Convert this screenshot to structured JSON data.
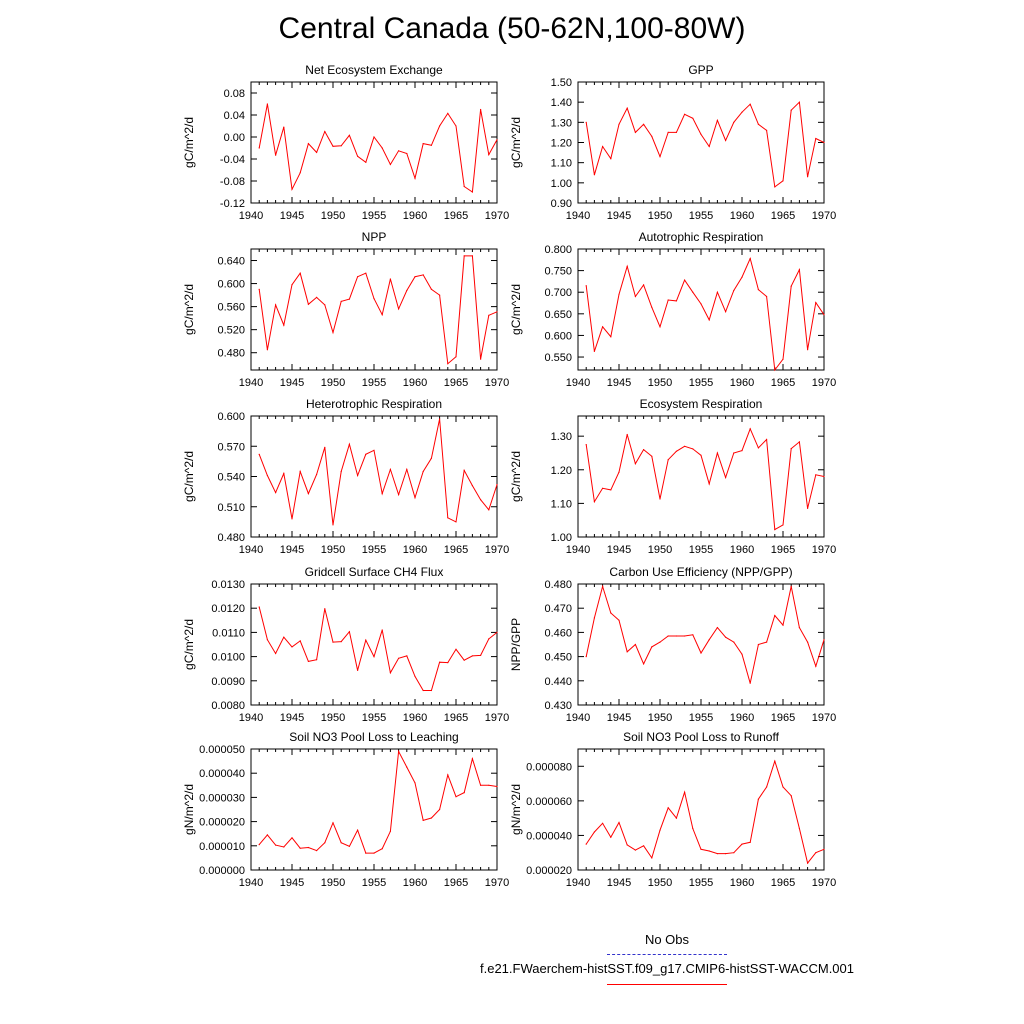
{
  "title": "Central Canada (50-62N,100-80W)",
  "legend": {
    "obs_label": "No Obs",
    "obs_color": "#3333cc",
    "model_label": "f.e21.FWaerchem-histSST.f09_g17.CMIP6-histSST-WACCM.001",
    "model_color": "#ff0000"
  },
  "chart_data": [
    {
      "type": "line",
      "title": "Net Ecosystem Exchange",
      "ylabel": "gC/m^2/d",
      "xlim": [
        1940,
        1970
      ],
      "ylim": [
        -0.12,
        0.1
      ],
      "yticks": [
        "0.08",
        "0.04",
        "0.00",
        "-0.04",
        "-0.08",
        "-0.12"
      ],
      "ytick_values": [
        0.08,
        0.04,
        0.0,
        -0.04,
        -0.08,
        -0.12
      ],
      "xticks": [
        "1940",
        "1945",
        "1950",
        "1955",
        "1960",
        "1965",
        "1970"
      ],
      "x": [
        1941,
        1942,
        1943,
        1944,
        1945,
        1946,
        1947,
        1948,
        1949,
        1950,
        1951,
        1952,
        1953,
        1954,
        1955,
        1956,
        1957,
        1958,
        1959,
        1960,
        1961,
        1962,
        1963,
        1964,
        1965,
        1966,
        1967,
        1968,
        1969,
        1970
      ],
      "series": [
        {
          "values": [
            -0.02,
            0.06,
            -0.033,
            0.018,
            -0.095,
            -0.065,
            -0.012,
            -0.028,
            0.01,
            -0.017,
            -0.016,
            0.003,
            -0.035,
            -0.046,
            0.0,
            -0.02,
            -0.05,
            -0.025,
            -0.03,
            -0.075,
            -0.012,
            -0.015,
            0.02,
            0.043,
            0.02,
            -0.09,
            -0.1,
            0.05,
            -0.032,
            -0.005
          ],
          "color": "#ff0000"
        }
      ]
    },
    {
      "type": "line",
      "title": "GPP",
      "ylabel": "gC/m^2/d",
      "xlim": [
        1940,
        1970
      ],
      "ylim": [
        0.9,
        1.5
      ],
      "yticks": [
        "1.50",
        "1.40",
        "1.30",
        "1.20",
        "1.10",
        "1.00",
        "0.90"
      ],
      "ytick_values": [
        1.5,
        1.4,
        1.3,
        1.2,
        1.1,
        1.0,
        0.9
      ],
      "xticks": [
        "1940",
        "1945",
        "1950",
        "1955",
        "1960",
        "1965",
        "1970"
      ],
      "x": [
        1941,
        1942,
        1943,
        1944,
        1945,
        1946,
        1947,
        1948,
        1949,
        1950,
        1951,
        1952,
        1953,
        1954,
        1955,
        1956,
        1957,
        1958,
        1959,
        1960,
        1961,
        1962,
        1963,
        1964,
        1965,
        1966,
        1967,
        1968,
        1969,
        1970
      ],
      "series": [
        {
          "values": [
            1.3,
            1.04,
            1.18,
            1.12,
            1.29,
            1.37,
            1.25,
            1.29,
            1.23,
            1.13,
            1.25,
            1.25,
            1.34,
            1.32,
            1.24,
            1.18,
            1.31,
            1.21,
            1.3,
            1.35,
            1.39,
            1.29,
            1.26,
            0.98,
            1.01,
            1.36,
            1.4,
            1.03,
            1.22,
            1.2
          ],
          "color": "#ff0000"
        }
      ]
    },
    {
      "type": "line",
      "title": "NPP",
      "ylabel": "gC/m^2/d",
      "xlim": [
        1940,
        1970
      ],
      "ylim": [
        0.45,
        0.66
      ],
      "yticks": [
        "0.640",
        "0.600",
        "0.560",
        "0.520",
        "0.480"
      ],
      "ytick_values": [
        0.64,
        0.6,
        0.56,
        0.52,
        0.48
      ],
      "xticks": [
        "1940",
        "1945",
        "1950",
        "1955",
        "1960",
        "1965",
        "1970"
      ],
      "x": [
        1941,
        1942,
        1943,
        1944,
        1945,
        1946,
        1947,
        1948,
        1949,
        1950,
        1951,
        1952,
        1953,
        1954,
        1955,
        1956,
        1957,
        1958,
        1959,
        1960,
        1961,
        1962,
        1963,
        1964,
        1965,
        1966,
        1967,
        1968,
        1969,
        1970
      ],
      "series": [
        {
          "values": [
            0.59,
            0.485,
            0.563,
            0.528,
            0.598,
            0.618,
            0.564,
            0.576,
            0.563,
            0.515,
            0.569,
            0.573,
            0.612,
            0.618,
            0.574,
            0.546,
            0.608,
            0.556,
            0.588,
            0.612,
            0.615,
            0.59,
            0.58,
            0.461,
            0.473,
            0.648,
            0.648,
            0.469,
            0.545,
            0.551
          ],
          "color": "#ff0000"
        }
      ]
    },
    {
      "type": "line",
      "title": "Autotrophic Respiration",
      "ylabel": "gC/m^2/d",
      "xlim": [
        1940,
        1970
      ],
      "ylim": [
        0.52,
        0.8
      ],
      "yticks": [
        "0.800",
        "0.750",
        "0.700",
        "0.650",
        "0.600",
        "0.550"
      ],
      "ytick_values": [
        0.8,
        0.75,
        0.7,
        0.65,
        0.6,
        0.55
      ],
      "xticks": [
        "1940",
        "1945",
        "1950",
        "1955",
        "1960",
        "1965",
        "1970"
      ],
      "x": [
        1941,
        1942,
        1943,
        1944,
        1945,
        1946,
        1947,
        1948,
        1949,
        1950,
        1951,
        1952,
        1953,
        1954,
        1955,
        1956,
        1957,
        1958,
        1959,
        1960,
        1961,
        1962,
        1963,
        1964,
        1965,
        1966,
        1967,
        1968,
        1969,
        1970
      ],
      "series": [
        {
          "values": [
            0.715,
            0.563,
            0.62,
            0.597,
            0.695,
            0.76,
            0.69,
            0.717,
            0.665,
            0.62,
            0.682,
            0.68,
            0.728,
            0.7,
            0.673,
            0.636,
            0.7,
            0.655,
            0.704,
            0.735,
            0.778,
            0.706,
            0.69,
            0.52,
            0.545,
            0.714,
            0.752,
            0.567,
            0.676,
            0.648
          ],
          "color": "#ff0000"
        }
      ]
    },
    {
      "type": "line",
      "title": "Heterotrophic Respiration",
      "ylabel": "gC/m^2/d",
      "xlim": [
        1940,
        1970
      ],
      "ylim": [
        0.48,
        0.6
      ],
      "yticks": [
        "0.600",
        "0.570",
        "0.540",
        "0.510",
        "0.480"
      ],
      "ytick_values": [
        0.6,
        0.57,
        0.54,
        0.51,
        0.48
      ],
      "xticks": [
        "1940",
        "1945",
        "1950",
        "1955",
        "1960",
        "1965",
        "1970"
      ],
      "x": [
        1941,
        1942,
        1943,
        1944,
        1945,
        1946,
        1947,
        1948,
        1949,
        1950,
        1951,
        1952,
        1953,
        1954,
        1955,
        1956,
        1957,
        1958,
        1959,
        1960,
        1961,
        1962,
        1963,
        1964,
        1965,
        1966,
        1967,
        1968,
        1969,
        1970
      ],
      "series": [
        {
          "values": [
            0.562,
            0.541,
            0.524,
            0.543,
            0.498,
            0.545,
            0.523,
            0.542,
            0.569,
            0.492,
            0.545,
            0.572,
            0.541,
            0.562,
            0.566,
            0.523,
            0.547,
            0.522,
            0.547,
            0.519,
            0.545,
            0.558,
            0.597,
            0.499,
            0.495,
            0.546,
            0.531,
            0.517,
            0.507,
            0.532
          ],
          "color": "#ff0000"
        }
      ]
    },
    {
      "type": "line",
      "title": "Ecosystem Respiration",
      "ylabel": "gC/m^2/d",
      "xlim": [
        1940,
        1970
      ],
      "ylim": [
        1.0,
        1.36
      ],
      "yticks": [
        "1.30",
        "1.20",
        "1.10",
        "1.00"
      ],
      "ytick_values": [
        1.3,
        1.2,
        1.1,
        1.0
      ],
      "xticks": [
        "1940",
        "1945",
        "1950",
        "1955",
        "1960",
        "1965",
        "1970"
      ],
      "x": [
        1941,
        1942,
        1943,
        1944,
        1945,
        1946,
        1947,
        1948,
        1949,
        1950,
        1951,
        1952,
        1953,
        1954,
        1955,
        1956,
        1957,
        1958,
        1959,
        1960,
        1961,
        1962,
        1963,
        1964,
        1965,
        1966,
        1967,
        1968,
        1969,
        1970
      ],
      "series": [
        {
          "values": [
            1.275,
            1.105,
            1.145,
            1.14,
            1.193,
            1.305,
            1.218,
            1.26,
            1.24,
            1.113,
            1.23,
            1.255,
            1.27,
            1.262,
            1.243,
            1.158,
            1.25,
            1.177,
            1.25,
            1.257,
            1.322,
            1.265,
            1.29,
            1.022,
            1.036,
            1.263,
            1.283,
            1.085,
            1.185,
            1.18
          ],
          "color": "#ff0000"
        }
      ]
    },
    {
      "type": "line",
      "title": "Gridcell Surface CH4 Flux",
      "ylabel": "gC/m^2/d",
      "xlim": [
        1940,
        1970
      ],
      "ylim": [
        0.008,
        0.013
      ],
      "yticks": [
        "0.0130",
        "0.0120",
        "0.0110",
        "0.0100",
        "0.0090",
        "0.0080"
      ],
      "ytick_values": [
        0.013,
        0.012,
        0.011,
        0.01,
        0.009,
        0.008
      ],
      "xticks": [
        "1940",
        "1945",
        "1950",
        "1955",
        "1960",
        "1965",
        "1970"
      ],
      "x": [
        1941,
        1942,
        1943,
        1944,
        1945,
        1946,
        1947,
        1948,
        1949,
        1950,
        1951,
        1952,
        1953,
        1954,
        1955,
        1956,
        1957,
        1958,
        1959,
        1960,
        1961,
        1962,
        1963,
        1964,
        1965,
        1966,
        1967,
        1968,
        1969,
        1970
      ],
      "series": [
        {
          "values": [
            0.01205,
            0.0107,
            0.01013,
            0.0108,
            0.0104,
            0.01065,
            0.0098,
            0.00987,
            0.01198,
            0.0106,
            0.01062,
            0.01103,
            0.00943,
            0.01068,
            0.01,
            0.0111,
            0.00933,
            0.00993,
            0.01003,
            0.00918,
            0.0086,
            0.0086,
            0.00977,
            0.00975,
            0.0103,
            0.00985,
            0.01003,
            0.01005,
            0.01073,
            0.011
          ],
          "color": "#ff0000"
        }
      ]
    },
    {
      "type": "line",
      "title": "Carbon Use Efficiency (NPP/GPP)",
      "ylabel": "NPP/GPP",
      "xlim": [
        1940,
        1970
      ],
      "ylim": [
        0.43,
        0.48
      ],
      "yticks": [
        "0.480",
        "0.470",
        "0.460",
        "0.450",
        "0.440",
        "0.430"
      ],
      "ytick_values": [
        0.48,
        0.47,
        0.46,
        0.45,
        0.44,
        0.43
      ],
      "xticks": [
        "1940",
        "1945",
        "1950",
        "1955",
        "1960",
        "1965",
        "1970"
      ],
      "x": [
        1941,
        1942,
        1943,
        1944,
        1945,
        1946,
        1947,
        1948,
        1949,
        1950,
        1951,
        1952,
        1953,
        1954,
        1955,
        1956,
        1957,
        1958,
        1959,
        1960,
        1961,
        1962,
        1963,
        1964,
        1965,
        1966,
        1967,
        1968,
        1969,
        1970
      ],
      "series": [
        {
          "values": [
            0.45,
            0.466,
            0.479,
            0.468,
            0.465,
            0.452,
            0.455,
            0.447,
            0.454,
            0.456,
            0.4585,
            0.4585,
            0.4585,
            0.459,
            0.4515,
            0.457,
            0.462,
            0.458,
            0.456,
            0.451,
            0.439,
            0.455,
            0.456,
            0.467,
            0.463,
            0.479,
            0.462,
            0.456,
            0.446,
            0.457
          ],
          "color": "#ff0000"
        }
      ]
    },
    {
      "type": "line",
      "title": "Soil NO3 Pool Loss to Leaching",
      "ylabel": "gN/m^2/d",
      "xlim": [
        1940,
        1970
      ],
      "ylim": [
        0.0,
        5e-05
      ],
      "yticks": [
        "0.000050",
        "0.000040",
        "0.000030",
        "0.000020",
        "0.000010",
        "0.000000"
      ],
      "ytick_values": [
        5e-05,
        4e-05,
        3e-05,
        2e-05,
        1e-05,
        0.0
      ],
      "xticks": [
        "1940",
        "1945",
        "1950",
        "1955",
        "1960",
        "1965",
        "1970"
      ],
      "x": [
        1941,
        1942,
        1943,
        1944,
        1945,
        1946,
        1947,
        1948,
        1949,
        1950,
        1951,
        1952,
        1953,
        1954,
        1955,
        1956,
        1957,
        1958,
        1959,
        1960,
        1961,
        1962,
        1963,
        1964,
        1965,
        1966,
        1967,
        1968,
        1969,
        1970
      ],
      "series": [
        {
          "values": [
            1.05e-05,
            1.45e-05,
            1.03e-05,
            9.5e-06,
            1.33e-05,
            9e-06,
            9.3e-06,
            8e-06,
            1.13e-05,
            1.95e-05,
            1.13e-05,
            9.8e-06,
            1.65e-05,
            7e-06,
            7e-06,
            8.8e-06,
            1.6e-05,
            4.9e-05,
            4.25e-05,
            3.6e-05,
            2.05e-05,
            2.15e-05,
            2.5e-05,
            3.93e-05,
            3.03e-05,
            3.2e-05,
            4.6e-05,
            3.5e-05,
            3.5e-05,
            3.45e-05
          ],
          "color": "#ff0000"
        }
      ]
    },
    {
      "type": "line",
      "title": "Soil NO3 Pool Loss to Runoff",
      "ylabel": "gN/m^2/d",
      "xlim": [
        1940,
        1970
      ],
      "ylim": [
        2e-05,
        9e-05
      ],
      "yticks": [
        "0.000080",
        "0.000060",
        "0.000040",
        "0.000020"
      ],
      "ytick_values": [
        8e-05,
        6e-05,
        4e-05,
        2e-05
      ],
      "xticks": [
        "1940",
        "1945",
        "1950",
        "1955",
        "1960",
        "1965",
        "1970"
      ],
      "x": [
        1941,
        1942,
        1943,
        1944,
        1945,
        1946,
        1947,
        1948,
        1949,
        1950,
        1951,
        1952,
        1953,
        1954,
        1955,
        1956,
        1957,
        1958,
        1959,
        1960,
        1961,
        1962,
        1963,
        1964,
        1965,
        1966,
        1967,
        1968,
        1969,
        1970
      ],
      "series": [
        {
          "values": [
            3.5e-05,
            4.2e-05,
            4.7e-05,
            3.9e-05,
            4.75e-05,
            3.45e-05,
            3.15e-05,
            3.4e-05,
            2.7e-05,
            4.3e-05,
            5.6e-05,
            5e-05,
            6.5e-05,
            4.4e-05,
            3.2e-05,
            3.1e-05,
            2.95e-05,
            2.95e-05,
            3e-05,
            3.5e-05,
            3.6e-05,
            6.1e-05,
            6.8e-05,
            8.3e-05,
            6.8e-05,
            6.3e-05,
            4.4e-05,
            2.4e-05,
            3e-05,
            3.2e-05
          ],
          "color": "#ff0000"
        }
      ]
    }
  ]
}
